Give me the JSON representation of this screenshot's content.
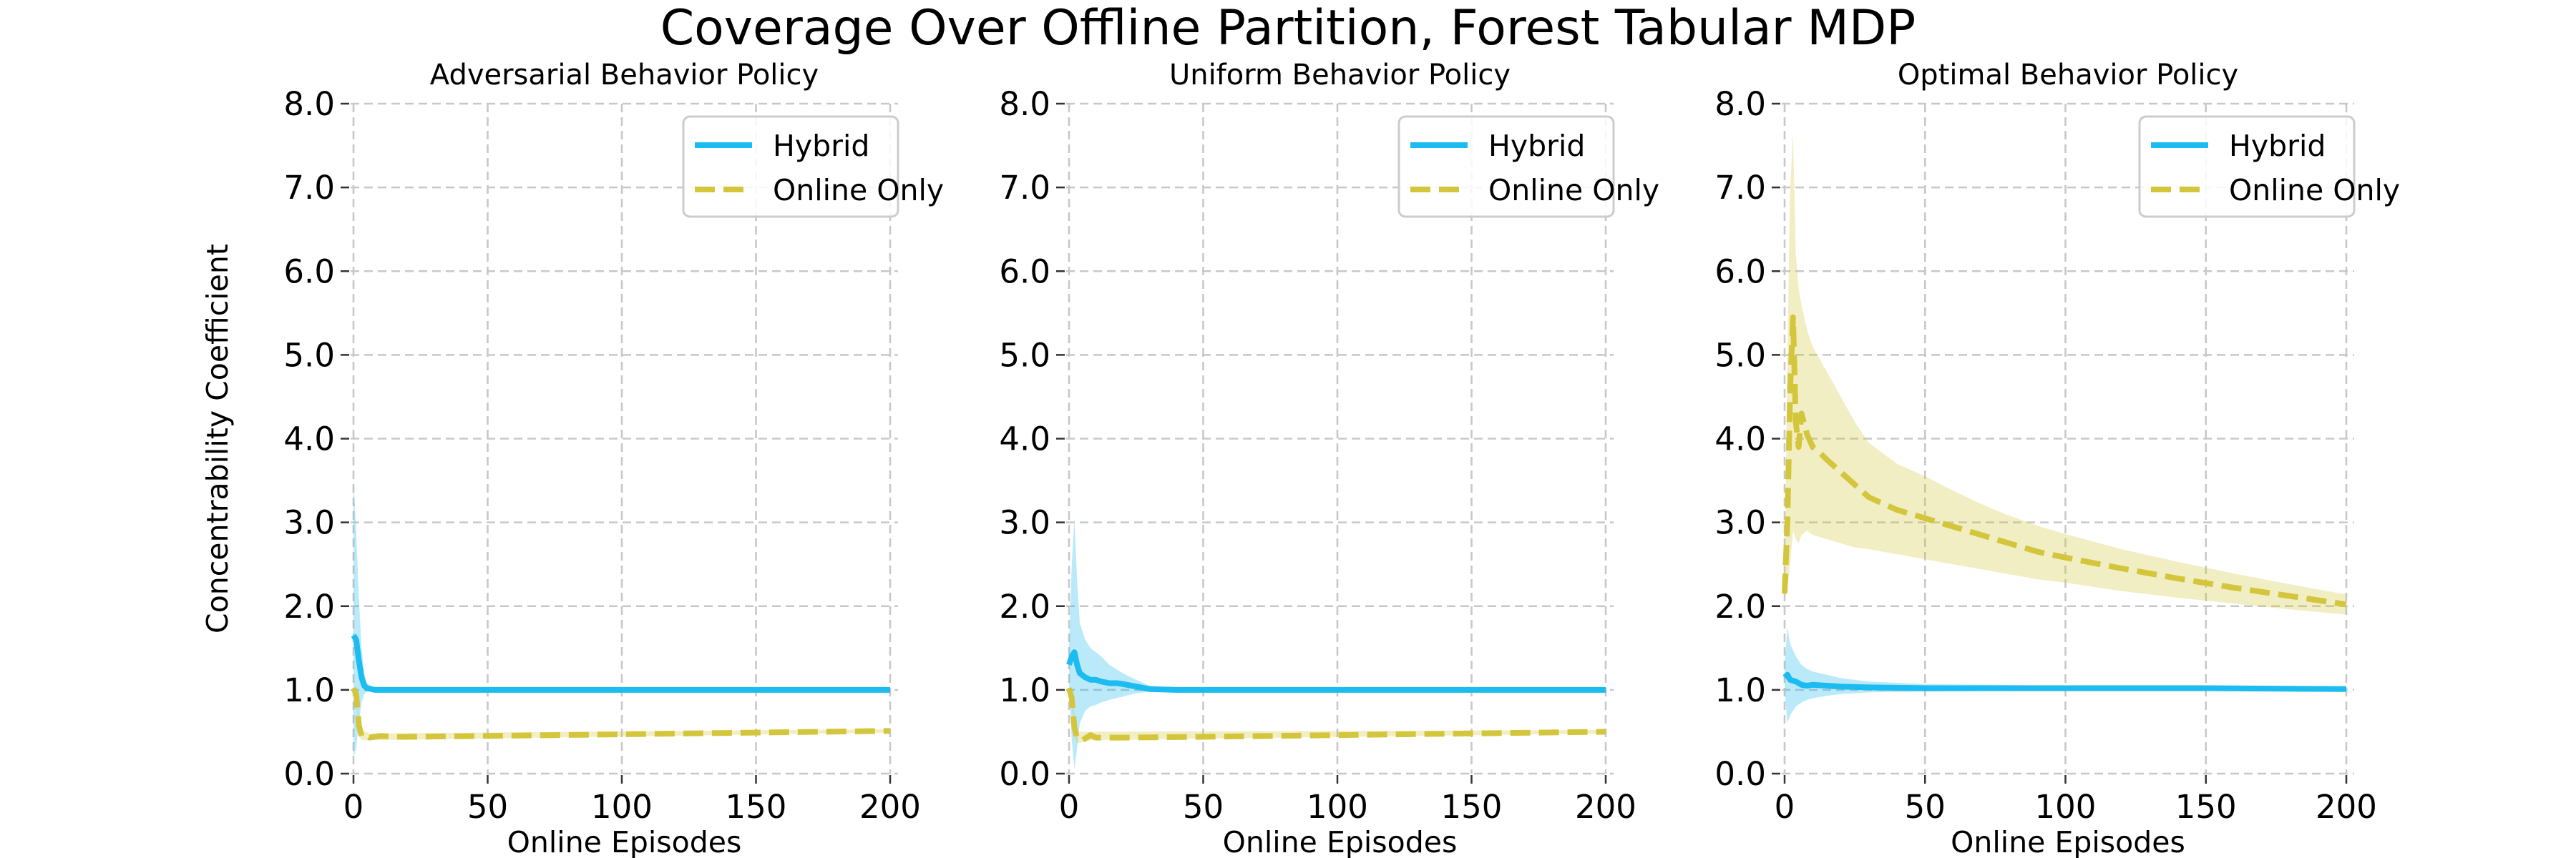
{
  "chart_data": [
    {
      "type": "line",
      "title": "Adversarial Behavior Policy",
      "xlabel": "Online Episodes",
      "ylabel": "Concentrability Coefficient",
      "xlim": [
        0,
        200
      ],
      "ylim": [
        0,
        8
      ],
      "xticks": [
        0,
        50,
        100,
        150,
        200
      ],
      "yticks": [
        0,
        1,
        2,
        3,
        4,
        5,
        6,
        7,
        8
      ],
      "xtick_labels": [
        "0",
        "50",
        "100",
        "150",
        "200"
      ],
      "ytick_labels": [
        "0.0",
        "1.0",
        "2.0",
        "3.0",
        "4.0",
        "5.0",
        "6.0",
        "7.0",
        "8.0"
      ],
      "grid": true,
      "legend": "top-right",
      "series": [
        {
          "name": "Hybrid",
          "color": "#1cbbf0",
          "style": "solid",
          "points": [
            [
              0,
              1.65
            ],
            [
              1,
              1.6
            ],
            [
              2,
              1.35
            ],
            [
              3,
              1.15
            ],
            [
              4,
              1.05
            ],
            [
              5,
              1.02
            ],
            [
              8,
              1.0
            ],
            [
              200,
              1.0
            ]
          ],
          "band_upper": [
            [
              0,
              3.5
            ],
            [
              1,
              2.9
            ],
            [
              2,
              2.1
            ],
            [
              3,
              1.5
            ],
            [
              4,
              1.2
            ],
            [
              5,
              1.08
            ],
            [
              8,
              1.02
            ],
            [
              200,
              1.0
            ]
          ],
          "band_lower": [
            [
              0,
              0.2
            ],
            [
              1,
              0.3
            ],
            [
              2,
              0.6
            ],
            [
              3,
              0.85
            ],
            [
              4,
              0.95
            ],
            [
              5,
              0.98
            ],
            [
              8,
              1.0
            ],
            [
              200,
              1.0
            ]
          ]
        },
        {
          "name": "Online Only",
          "color": "#d4c63c",
          "style": "dashed",
          "points": [
            [
              0,
              1.02
            ],
            [
              1,
              0.95
            ],
            [
              2,
              0.58
            ],
            [
              3,
              0.45
            ],
            [
              4,
              0.47
            ],
            [
              6,
              0.43
            ],
            [
              10,
              0.45
            ],
            [
              15,
              0.44
            ],
            [
              20,
              0.44
            ],
            [
              50,
              0.45
            ],
            [
              100,
              0.47
            ],
            [
              150,
              0.49
            ],
            [
              200,
              0.51
            ]
          ],
          "band_upper": [
            [
              0,
              1.05
            ],
            [
              1,
              1.0
            ],
            [
              2,
              0.7
            ],
            [
              3,
              0.52
            ],
            [
              6,
              0.48
            ],
            [
              200,
              0.53
            ]
          ],
          "band_lower": [
            [
              0,
              0.98
            ],
            [
              1,
              0.9
            ],
            [
              2,
              0.45
            ],
            [
              3,
              0.4
            ],
            [
              6,
              0.4
            ],
            [
              200,
              0.49
            ]
          ]
        }
      ]
    },
    {
      "type": "line",
      "title": "Uniform Behavior Policy",
      "xlabel": "Online Episodes",
      "ylabel": "",
      "xlim": [
        0,
        200
      ],
      "ylim": [
        0,
        8
      ],
      "xticks": [
        0,
        50,
        100,
        150,
        200
      ],
      "yticks": [
        0,
        1,
        2,
        3,
        4,
        5,
        6,
        7,
        8
      ],
      "xtick_labels": [
        "0",
        "50",
        "100",
        "150",
        "200"
      ],
      "ytick_labels": [
        "0.0",
        "1.0",
        "2.0",
        "3.0",
        "4.0",
        "5.0",
        "6.0",
        "7.0",
        "8.0"
      ],
      "grid": true,
      "legend": "top-right",
      "series": [
        {
          "name": "Hybrid",
          "color": "#1cbbf0",
          "style": "solid",
          "points": [
            [
              0,
              1.3
            ],
            [
              1,
              1.4
            ],
            [
              2,
              1.45
            ],
            [
              3,
              1.3
            ],
            [
              4,
              1.2
            ],
            [
              6,
              1.15
            ],
            [
              8,
              1.12
            ],
            [
              10,
              1.12
            ],
            [
              12,
              1.1
            ],
            [
              15,
              1.08
            ],
            [
              18,
              1.08
            ],
            [
              20,
              1.07
            ],
            [
              25,
              1.04
            ],
            [
              30,
              1.01
            ],
            [
              40,
              1.0
            ],
            [
              200,
              1.0
            ]
          ],
          "band_upper": [
            [
              0,
              1.5
            ],
            [
              1,
              2.5
            ],
            [
              2,
              3.05
            ],
            [
              3,
              2.3
            ],
            [
              4,
              1.8
            ],
            [
              6,
              1.6
            ],
            [
              8,
              1.5
            ],
            [
              10,
              1.45
            ],
            [
              12,
              1.4
            ],
            [
              15,
              1.3
            ],
            [
              20,
              1.2
            ],
            [
              25,
              1.12
            ],
            [
              30,
              1.05
            ],
            [
              40,
              1.01
            ],
            [
              200,
              1.0
            ]
          ],
          "band_lower": [
            [
              0,
              1.1
            ],
            [
              1,
              0.4
            ],
            [
              2,
              0.05
            ],
            [
              3,
              0.3
            ],
            [
              4,
              0.6
            ],
            [
              6,
              0.75
            ],
            [
              8,
              0.8
            ],
            [
              10,
              0.82
            ],
            [
              12,
              0.85
            ],
            [
              15,
              0.88
            ],
            [
              20,
              0.92
            ],
            [
              25,
              0.96
            ],
            [
              30,
              0.98
            ],
            [
              40,
              1.0
            ],
            [
              200,
              1.0
            ]
          ]
        },
        {
          "name": "Online Only",
          "color": "#d4c63c",
          "style": "dashed",
          "points": [
            [
              0,
              1.02
            ],
            [
              1,
              0.9
            ],
            [
              2,
              0.55
            ],
            [
              3,
              0.42
            ],
            [
              5,
              0.4
            ],
            [
              8,
              0.46
            ],
            [
              10,
              0.43
            ],
            [
              15,
              0.43
            ],
            [
              20,
              0.43
            ],
            [
              50,
              0.44
            ],
            [
              100,
              0.46
            ],
            [
              150,
              0.48
            ],
            [
              200,
              0.5
            ]
          ],
          "band_upper": [
            [
              0,
              1.05
            ],
            [
              1,
              1.0
            ],
            [
              2,
              0.7
            ],
            [
              3,
              0.5
            ],
            [
              8,
              0.5
            ],
            [
              200,
              0.52
            ]
          ],
          "band_lower": [
            [
              0,
              0.98
            ],
            [
              1,
              0.8
            ],
            [
              2,
              0.42
            ],
            [
              3,
              0.36
            ],
            [
              8,
              0.4
            ],
            [
              200,
              0.48
            ]
          ]
        }
      ]
    },
    {
      "type": "line",
      "title": "Optimal Behavior Policy",
      "xlabel": "Online Episodes",
      "ylabel": "",
      "xlim": [
        0,
        200
      ],
      "ylim": [
        0,
        8
      ],
      "xticks": [
        0,
        50,
        100,
        150,
        200
      ],
      "yticks": [
        0,
        1,
        2,
        3,
        4,
        5,
        6,
        7,
        8
      ],
      "xtick_labels": [
        "0",
        "50",
        "100",
        "150",
        "200"
      ],
      "ytick_labels": [
        "0.0",
        "1.0",
        "2.0",
        "3.0",
        "4.0",
        "5.0",
        "6.0",
        "7.0",
        "8.0"
      ],
      "grid": true,
      "legend": "top-right",
      "series": [
        {
          "name": "Hybrid",
          "color": "#1cbbf0",
          "style": "solid",
          "points": [
            [
              0,
              1.15
            ],
            [
              1,
              1.18
            ],
            [
              2,
              1.12
            ],
            [
              4,
              1.1
            ],
            [
              6,
              1.06
            ],
            [
              8,
              1.05
            ],
            [
              10,
              1.06
            ],
            [
              15,
              1.05
            ],
            [
              20,
              1.04
            ],
            [
              30,
              1.03
            ],
            [
              50,
              1.02
            ],
            [
              100,
              1.02
            ],
            [
              150,
              1.02
            ],
            [
              200,
              1.01
            ]
          ],
          "band_upper": [
            [
              0,
              1.3
            ],
            [
              1,
              1.75
            ],
            [
              2,
              1.55
            ],
            [
              4,
              1.4
            ],
            [
              6,
              1.3
            ],
            [
              8,
              1.25
            ],
            [
              10,
              1.22
            ],
            [
              15,
              1.18
            ],
            [
              20,
              1.14
            ],
            [
              30,
              1.1
            ],
            [
              50,
              1.07
            ],
            [
              100,
              1.05
            ],
            [
              150,
              1.04
            ],
            [
              200,
              1.03
            ]
          ],
          "band_lower": [
            [
              0,
              1.0
            ],
            [
              1,
              0.6
            ],
            [
              2,
              0.7
            ],
            [
              4,
              0.8
            ],
            [
              6,
              0.85
            ],
            [
              8,
              0.88
            ],
            [
              10,
              0.9
            ],
            [
              15,
              0.93
            ],
            [
              20,
              0.95
            ],
            [
              30,
              0.97
            ],
            [
              50,
              0.98
            ],
            [
              100,
              0.99
            ],
            [
              150,
              1.0
            ],
            [
              200,
              1.0
            ]
          ]
        },
        {
          "name": "Online Only",
          "color": "#d4c63c",
          "style": "dashed",
          "points": [
            [
              0,
              2.15
            ],
            [
              1,
              3.0
            ],
            [
              2,
              4.6
            ],
            [
              3,
              5.45
            ],
            [
              4,
              4.2
            ],
            [
              5,
              3.9
            ],
            [
              6,
              4.3
            ],
            [
              8,
              4.05
            ],
            [
              10,
              3.9
            ],
            [
              12,
              3.85
            ],
            [
              15,
              3.75
            ],
            [
              20,
              3.6
            ],
            [
              25,
              3.45
            ],
            [
              30,
              3.3
            ],
            [
              40,
              3.15
            ],
            [
              50,
              3.05
            ],
            [
              60,
              2.95
            ],
            [
              70,
              2.85
            ],
            [
              80,
              2.75
            ],
            [
              90,
              2.65
            ],
            [
              100,
              2.58
            ],
            [
              120,
              2.45
            ],
            [
              140,
              2.33
            ],
            [
              160,
              2.22
            ],
            [
              180,
              2.12
            ],
            [
              200,
              2.02
            ]
          ],
          "band_upper": [
            [
              0,
              2.2
            ],
            [
              1,
              5.0
            ],
            [
              2,
              7.0
            ],
            [
              3,
              7.65
            ],
            [
              4,
              6.2
            ],
            [
              5,
              5.8
            ],
            [
              6,
              5.6
            ],
            [
              8,
              5.3
            ],
            [
              10,
              5.1
            ],
            [
              15,
              4.8
            ],
            [
              20,
              4.5
            ],
            [
              25,
              4.2
            ],
            [
              30,
              3.95
            ],
            [
              40,
              3.7
            ],
            [
              50,
              3.55
            ],
            [
              60,
              3.38
            ],
            [
              70,
              3.22
            ],
            [
              80,
              3.08
            ],
            [
              90,
              2.96
            ],
            [
              100,
              2.86
            ],
            [
              120,
              2.68
            ],
            [
              140,
              2.53
            ],
            [
              160,
              2.39
            ],
            [
              180,
              2.26
            ],
            [
              200,
              2.14
            ]
          ],
          "band_lower": [
            [
              0,
              2.1
            ],
            [
              1,
              2.2
            ],
            [
              2,
              2.5
            ],
            [
              3,
              2.9
            ],
            [
              4,
              2.8
            ],
            [
              5,
              2.75
            ],
            [
              6,
              2.85
            ],
            [
              8,
              2.9
            ],
            [
              10,
              2.85
            ],
            [
              15,
              2.8
            ],
            [
              20,
              2.75
            ],
            [
              25,
              2.7
            ],
            [
              30,
              2.68
            ],
            [
              40,
              2.62
            ],
            [
              50,
              2.56
            ],
            [
              60,
              2.5
            ],
            [
              70,
              2.44
            ],
            [
              80,
              2.38
            ],
            [
              90,
              2.32
            ],
            [
              100,
              2.28
            ],
            [
              120,
              2.18
            ],
            [
              140,
              2.1
            ],
            [
              160,
              2.03
            ],
            [
              180,
              1.96
            ],
            [
              200,
              1.9
            ]
          ]
        }
      ]
    }
  ],
  "figure": {
    "title": "Coverage Over Offline Partition, Forest Tabular MDP"
  }
}
